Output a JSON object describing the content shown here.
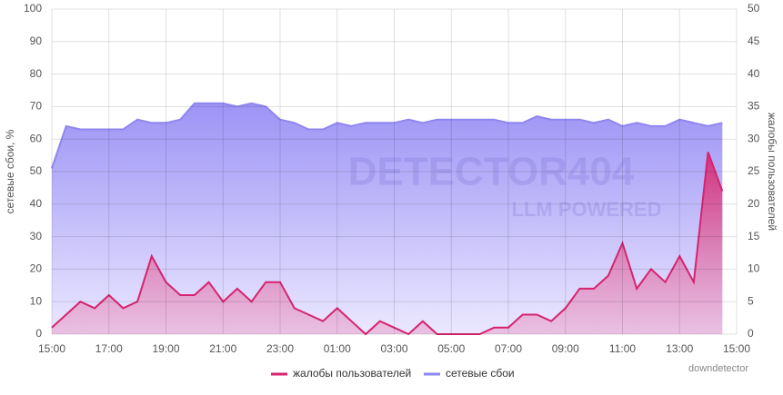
{
  "chart_data": {
    "type": "line",
    "ylabel": "сетевые сбои, %",
    "y2label": "жалобы пользователей",
    "watermark": {
      "title": "DETECTOR404",
      "subtitle": "LLM POWERED"
    },
    "source": "downdetector",
    "x": [
      0,
      0.5,
      1,
      1.5,
      2,
      2.5,
      3,
      3.5,
      4,
      4.5,
      5,
      5.5,
      6,
      6.5,
      7,
      7.5,
      8,
      8.5,
      9,
      9.5,
      10,
      10.5,
      11,
      11.5,
      12,
      12.5,
      13,
      13.5,
      14,
      14.5,
      15,
      15.5,
      16,
      16.5,
      17,
      17.5,
      18,
      18.5,
      19,
      19.5,
      20,
      20.5,
      21,
      21.5,
      22,
      22.5,
      23,
      23.5
    ],
    "xlim": [
      0,
      24
    ],
    "xticks": [
      {
        "value": 0,
        "label": "15:00"
      },
      {
        "value": 2,
        "label": "17:00"
      },
      {
        "value": 4,
        "label": "19:00"
      },
      {
        "value": 6,
        "label": "21:00"
      },
      {
        "value": 8,
        "label": "23:00"
      },
      {
        "value": 10,
        "label": "01:00"
      },
      {
        "value": 12,
        "label": "03:00"
      },
      {
        "value": 14,
        "label": "05:00"
      },
      {
        "value": 16,
        "label": "07:00"
      },
      {
        "value": 18,
        "label": "09:00"
      },
      {
        "value": 20,
        "label": "11:00"
      },
      {
        "value": 22,
        "label": "13:00"
      },
      {
        "value": 24,
        "label": "15:00"
      }
    ],
    "ylim": [
      0,
      100
    ],
    "yticks": [
      0,
      10,
      20,
      30,
      40,
      50,
      60,
      70,
      80,
      90,
      100
    ],
    "y2lim": [
      0,
      50
    ],
    "y2ticks": [
      0,
      5,
      10,
      15,
      20,
      25,
      30,
      35,
      40,
      45,
      50
    ],
    "grid": true,
    "series": [
      {
        "name": "жалобы пользователей",
        "color": "#d6246e",
        "axis": "y2",
        "values": [
          1,
          3,
          5,
          4,
          6,
          4,
          5,
          12,
          8,
          6,
          6,
          8,
          5,
          7,
          5,
          8,
          8,
          4,
          3,
          2,
          4,
          2,
          0,
          2,
          1,
          0,
          2,
          0,
          0,
          0,
          0,
          1,
          1,
          3,
          3,
          2,
          4,
          7,
          7,
          9,
          14,
          7,
          10,
          8,
          12,
          8,
          28,
          22
        ]
      },
      {
        "name": "сетевые сбои",
        "color": "#8f86f0",
        "axis": "y",
        "values": [
          51,
          64,
          63,
          63,
          63,
          63,
          66,
          65,
          65,
          66,
          71,
          71,
          71,
          70,
          71,
          70,
          66,
          65,
          63,
          63,
          65,
          64,
          65,
          65,
          65,
          66,
          65,
          66,
          66,
          66,
          66,
          66,
          65,
          65,
          67,
          66,
          66,
          66,
          65,
          66,
          64,
          65,
          64,
          64,
          66,
          65,
          64,
          65
        ]
      }
    ]
  }
}
